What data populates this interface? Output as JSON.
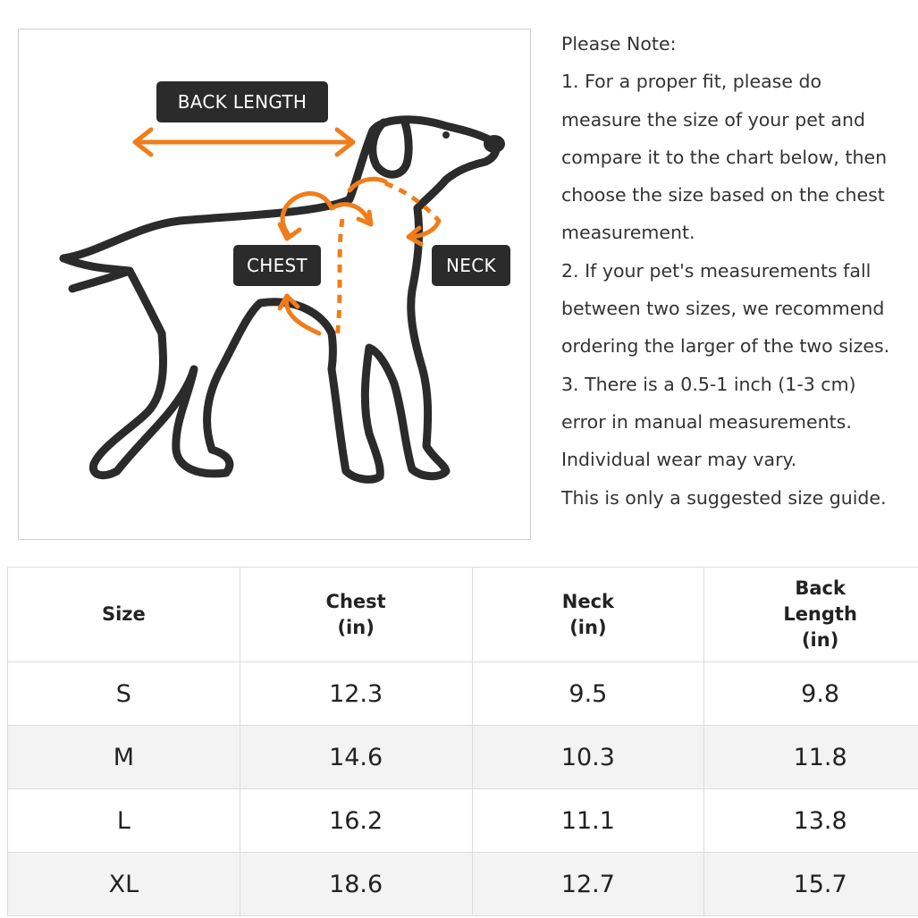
{
  "diagram": {
    "labels": {
      "back_length": "BACK LENGTH",
      "chest": "CHEST",
      "neck": "NECK"
    },
    "colors": {
      "arrow": "#f07d1a",
      "outline": "#2b2b2b",
      "label_bg": "#2b2b2b"
    },
    "icon": "dog-outline-icon"
  },
  "notes": {
    "lines": [
      "Please Note:",
      "1. For a proper fit, please do",
      "measure the size of your pet and",
      "compare it to the chart below, then",
      "choose the size based on the chest",
      "measurement.",
      "2. If your pet's measurements fall",
      "between two sizes, we recommend",
      "ordering the larger of the two sizes.",
      "3. There is a 0.5-1 inch (1-3 cm)",
      "error in manual measurements.",
      "Individual wear may vary.",
      "This is only a suggested size guide."
    ]
  },
  "table": {
    "headers": [
      "Size",
      "Chest\n(in)",
      "Neck\n(in)",
      "Back\nLength\n(in)"
    ],
    "rows": [
      [
        "S",
        "12.3",
        "9.5",
        "9.8"
      ],
      [
        "M",
        "14.6",
        "10.3",
        "11.8"
      ],
      [
        "L",
        "16.2",
        "11.1",
        "13.8"
      ],
      [
        "XL",
        "18.6",
        "12.7",
        "15.7"
      ]
    ]
  }
}
